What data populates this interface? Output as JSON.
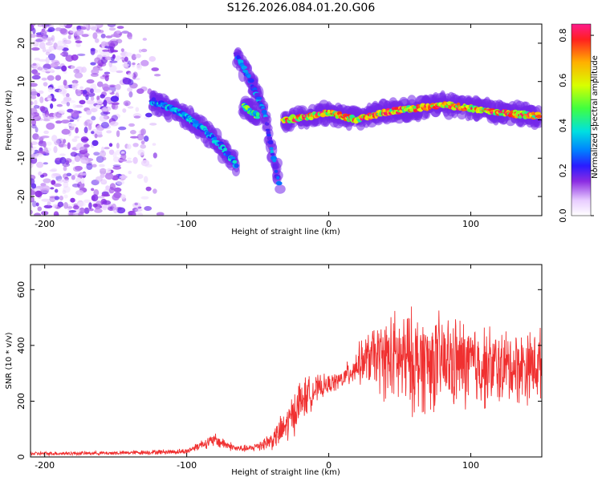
{
  "title": "S126.2026.084.01.20.G06",
  "chart_data": [
    {
      "type": "heatmap",
      "title": "S126.2026.084.01.20.G06",
      "xlabel": "Height of straight line (km)",
      "ylabel": "Frequency (Hz)",
      "xlim": [
        -210,
        150
      ],
      "ylim": [
        -25,
        25
      ],
      "xticks": [
        -200,
        -100,
        0,
        100
      ],
      "yticks": [
        -20,
        -10,
        0,
        10,
        20
      ],
      "colorbar": {
        "label": "Normalized spectral amplitude",
        "range": [
          0.0,
          0.85
        ],
        "ticks": [
          "0.0",
          "0.2",
          "0.4",
          "0.6",
          "0.8"
        ]
      },
      "features": [
        {
          "name": "noise-region",
          "x_range": [
            -210,
            -115
          ],
          "y_range": [
            -25,
            25
          ],
          "amplitude": 0.1
        },
        {
          "name": "main-diagonal-branch",
          "x": [
            -125,
            -105,
            -90,
            -75,
            -65
          ],
          "y": [
            5,
            2,
            -2,
            -7,
            -12
          ],
          "amplitude": 0.35
        },
        {
          "name": "upper-diagonal-branch",
          "x": [
            -65,
            -55,
            -45,
            -40,
            -35
          ],
          "y": [
            17,
            10,
            2,
            -8,
            -17
          ],
          "amplitude": 0.3
        },
        {
          "name": "short-branch",
          "x": [
            -60,
            -55,
            -50
          ],
          "y": [
            4,
            2,
            1
          ],
          "amplitude": 0.5
        },
        {
          "name": "steady-trace",
          "x": [
            -32,
            -10,
            0,
            20,
            40,
            60,
            80,
            100,
            120,
            148
          ],
          "y": [
            0,
            1,
            2,
            0,
            2,
            3,
            4,
            3,
            2,
            1
          ],
          "amplitude": 0.75
        }
      ]
    },
    {
      "type": "line",
      "xlabel": "Height of straight line (km)",
      "ylabel": "SNR (10 * v/v)",
      "xlim": [
        -210,
        150
      ],
      "ylim": [
        0,
        690
      ],
      "xticks": [
        -200,
        -100,
        0,
        100
      ],
      "yticks": [
        0,
        200,
        400,
        600
      ],
      "series": [
        {
          "name": "SNR",
          "color": "#f03030",
          "envelope": {
            "x": [
              -210,
              -150,
              -100,
              -90,
              -80,
              -65,
              -55,
              -40,
              -30,
              -20,
              -10,
              0,
              10,
              20,
              30,
              45,
              60,
              80,
              100,
              120,
              150
            ],
            "mean": [
              12,
              14,
              20,
              45,
              60,
              30,
              30,
              60,
              110,
              200,
              240,
              260,
              280,
              330,
              360,
              350,
              340,
              340,
              330,
              320,
              330
            ],
            "spread": [
              8,
              8,
              12,
              20,
              30,
              15,
              15,
              40,
              80,
              100,
              60,
              40,
              40,
              80,
              120,
              200,
              220,
              200,
              190,
              160,
              150
            ]
          }
        }
      ]
    }
  ]
}
